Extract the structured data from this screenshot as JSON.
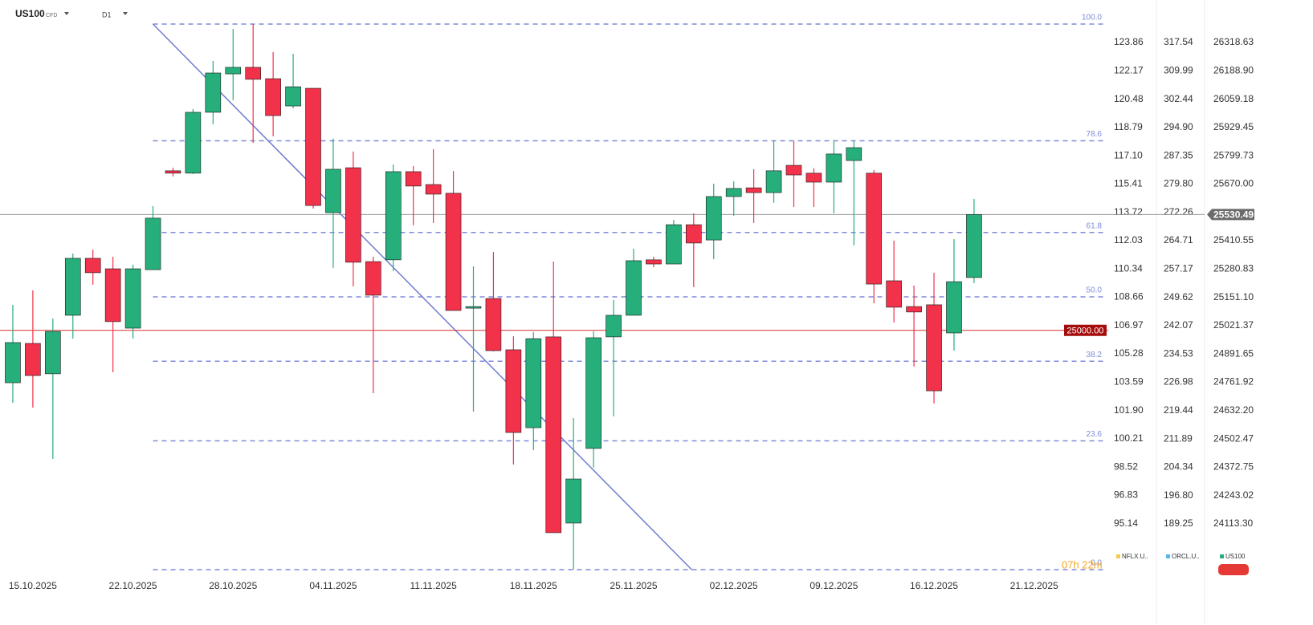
{
  "chart_data": {
    "type": "candlestick",
    "title": "US100",
    "subtitle": "CFD",
    "timeframe": "D1",
    "up_color": "#26ae7b",
    "down_color": "#f2314a",
    "open": [
      24760,
      24940,
      24801,
      25069,
      25330,
      25282,
      25010,
      25278,
      25731,
      25720,
      25999,
      26175,
      26205,
      26153,
      26028,
      26109,
      25539,
      25745,
      25315,
      25323,
      25727,
      25668,
      25628,
      25102,
      25146,
      24911,
      24554,
      24970,
      24117,
      24459,
      24970,
      25069,
      25323,
      25304,
      25484,
      25414,
      25613,
      25653,
      25631,
      25756,
      25720,
      25679,
      25778,
      25720,
      25227,
      25109,
      25117,
      24988,
      25242
    ],
    "high": [
      25117,
      25183,
      25054,
      25352,
      25370,
      25337,
      25301,
      25569,
      25745,
      26014,
      26234,
      26381,
      26403,
      26275,
      26267,
      26109,
      25878,
      25819,
      25337,
      25760,
      25753,
      25830,
      25730,
      25293,
      25359,
      24973,
      24992,
      25315,
      24598,
      24995,
      25139,
      25374,
      25337,
      25506,
      25536,
      25672,
      25683,
      25738,
      25870,
      25867,
      25742,
      25867,
      25867,
      25734,
      25411,
      25205,
      25264,
      25418,
      25602
    ],
    "low": [
      24668,
      24646,
      24411,
      24962,
      25209,
      24808,
      24962,
      25278,
      25705,
      25716,
      25944,
      26054,
      25859,
      25889,
      26017,
      25558,
      25286,
      25201,
      24712,
      25271,
      25481,
      25492,
      25091,
      24628,
      24904,
      24385,
      24451,
      24073,
      23904,
      24371,
      24606,
      25069,
      25289,
      25304,
      25198,
      25326,
      25525,
      25492,
      25584,
      25565,
      25565,
      25536,
      25389,
      25124,
      25036,
      24834,
      24665,
      24907,
      25216
    ],
    "close": [
      24944,
      24793,
      24995,
      25330,
      25264,
      25040,
      25282,
      25514,
      25720,
      25999,
      26179,
      26205,
      26150,
      25984,
      26116,
      25572,
      25738,
      25312,
      25161,
      25727,
      25661,
      25624,
      25091,
      25109,
      24907,
      24532,
      24962,
      24073,
      24319,
      24966,
      25069,
      25319,
      25304,
      25484,
      25400,
      25613,
      25650,
      25631,
      25731,
      25712,
      25679,
      25808,
      25837,
      25212,
      25106,
      25084,
      24723,
      25223,
      25530.49
    ],
    "xlim": [
      -0.64,
      54.7
    ],
    "xticks": [
      {
        "value": 1,
        "label": "15.10.2025"
      },
      {
        "value": 6,
        "label": "22.10.2025"
      },
      {
        "value": 11,
        "label": "28.10.2025"
      },
      {
        "value": 16,
        "label": "04.11.2025"
      },
      {
        "value": 21,
        "label": "11.11.2025"
      },
      {
        "value": 26,
        "label": "18.11.2025"
      },
      {
        "value": 31,
        "label": "25.11.2025"
      },
      {
        "value": 36,
        "label": "02.12.2025"
      },
      {
        "value": 41,
        "label": "09.12.2025"
      },
      {
        "value": 46,
        "label": "16.12.2025"
      },
      {
        "value": 51,
        "label": "21.12.2025"
      }
    ],
    "ylim": [
      23885.3,
      26513.44
    ],
    "yticks": [
      26318.63,
      {
        "value": 26188.9,
        "label": "26188.90"
      },
      26059.18,
      25929.45,
      25799.73,
      {
        "value": 25670,
        "label": "25670.00"
      },
      25410.55,
      25280.83,
      {
        "value": 25151.1,
        "label": "25151.10"
      },
      25021.37,
      24891.65,
      24761.92,
      {
        "value": 24632.2,
        "label": "24632.20"
      },
      24502.47,
      24372.75,
      24243.02,
      {
        "value": 24113.3,
        "label": "24113.30"
      }
    ],
    "legend_color": "#26ae7b",
    "compare": [
      {
        "name": "NFLX.U..",
        "color": "#f7c948",
        "ylim": [
          92.16,
          126.398
        ],
        "yticks": [
          123.86,
          122.17,
          120.48,
          118.79,
          {
            "value": 117.1,
            "label": "117.10"
          },
          115.41,
          113.72,
          112.03,
          110.34,
          108.66,
          106.97,
          105.28,
          103.59,
          {
            "value": 101.9,
            "label": "101.90"
          },
          100.21,
          98.52,
          96.83,
          95.14
        ]
      },
      {
        "name": "ORCL.U..",
        "color": "#5ab4f0",
        "ylim": [
          175.99,
          328.87
        ],
        "yticks": [
          317.54,
          309.99,
          302.44,
          {
            "value": 294.9,
            "label": "294.90"
          },
          287.35,
          {
            "value": 279.8,
            "label": "279.80"
          },
          272.26,
          264.71,
          257.17,
          249.62,
          242.07,
          234.53,
          226.98,
          219.44,
          211.89,
          204.34,
          {
            "value": 196.8,
            "label": "196.80"
          },
          189.25
        ]
      }
    ],
    "fib": {
      "from": 26403.1,
      "to": 23903.7,
      "start": 7,
      "color": "#7f8ad8",
      "levels": [
        {
          "value": 100,
          "label": "100.0"
        },
        78.6,
        61.8,
        {
          "value": 50,
          "label": "50.0"
        },
        38.2,
        23.6,
        {
          "value": 0,
          "label": "0.0"
        }
      ]
    },
    "trendline": {
      "x": [
        7,
        33.9
      ],
      "y": [
        26403.1,
        23903.7
      ],
      "color": "#6f7ccf"
    },
    "price_lines": [
      {
        "value": 25000,
        "label": "25000.00",
        "color": "#a50d0d"
      }
    ],
    "countdown": "07h 22m"
  }
}
